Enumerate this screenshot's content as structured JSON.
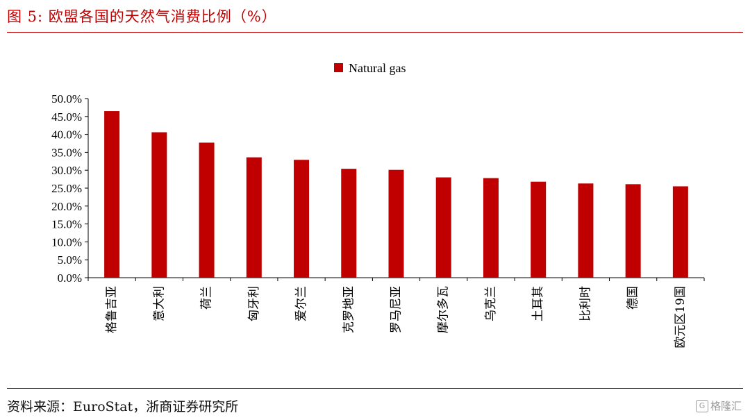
{
  "header": {
    "title": "图 5:   欧盟各国的天然气消费比例（%）"
  },
  "footer": {
    "source": "资料来源：EuroStat，浙商证券研究所",
    "watermark_icon": "G",
    "watermark_text": "格隆汇"
  },
  "colors": {
    "accent": "#c00000",
    "bar": "#c00000"
  },
  "chart_data": {
    "type": "bar",
    "categories": [
      "格鲁吉亚",
      "意大利",
      "荷兰",
      "匈牙利",
      "爱尔兰",
      "克罗地亚",
      "罗马尼亚",
      "摩尔多瓦",
      "乌克兰",
      "土耳其",
      "比利时",
      "德国",
      "欧元区19国"
    ],
    "series": [
      {
        "name": "Natural gas",
        "values": [
          46.5,
          40.6,
          37.7,
          33.6,
          32.9,
          30.4,
          30.1,
          28.0,
          27.8,
          26.8,
          26.3,
          26.1,
          25.5
        ]
      }
    ],
    "ylim": [
      0,
      50
    ],
    "yticks": [
      "0.0%",
      "5.0%",
      "10.0%",
      "15.0%",
      "20.0%",
      "25.0%",
      "30.0%",
      "35.0%",
      "40.0%",
      "45.0%",
      "50.0%"
    ],
    "legend_position": "top-center",
    "grid": false
  }
}
